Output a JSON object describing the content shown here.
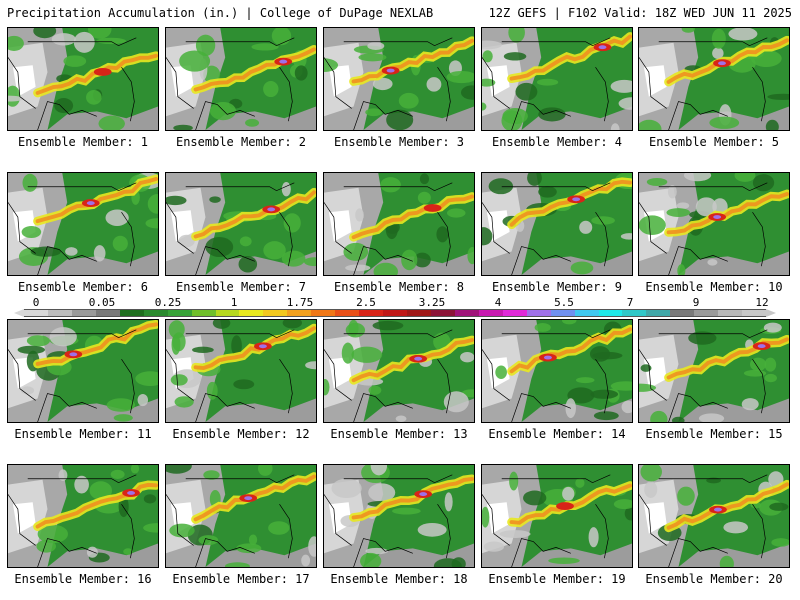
{
  "header": {
    "left_title": "Precipitation Accumulation (in.) | College of DuPage NEXLAB",
    "right_title": "12Z GEFS | F102 Valid: 18Z WED JUN 11 2025"
  },
  "panels": [
    {
      "label": "Ensemble Member: 1"
    },
    {
      "label": "Ensemble Member: 2"
    },
    {
      "label": "Ensemble Member: 3"
    },
    {
      "label": "Ensemble Member: 4"
    },
    {
      "label": "Ensemble Member: 5"
    },
    {
      "label": "Ensemble Member: 6"
    },
    {
      "label": "Ensemble Member: 7"
    },
    {
      "label": "Ensemble Member: 8"
    },
    {
      "label": "Ensemble Member: 9"
    },
    {
      "label": "Ensemble Member: 10"
    },
    {
      "label": "Ensemble Member: 11"
    },
    {
      "label": "Ensemble Member: 12"
    },
    {
      "label": "Ensemble Member: 13"
    },
    {
      "label": "Ensemble Member: 14"
    },
    {
      "label": "Ensemble Member: 15"
    },
    {
      "label": "Ensemble Member: 16"
    },
    {
      "label": "Ensemble Member: 17"
    },
    {
      "label": "Ensemble Member: 18"
    },
    {
      "label": "Ensemble Member: 19"
    },
    {
      "label": "Ensemble Member: 20"
    }
  ],
  "colorbar": {
    "labels": [
      "0",
      "0.05",
      "0.25",
      "1",
      "1.75",
      "2.5",
      "3.25",
      "4",
      "5.5",
      "7",
      "9",
      "12"
    ],
    "colors": [
      "#d8d8d8",
      "#bdbdbd",
      "#9a9a9a",
      "#7a7a7a",
      "#1e6e1e",
      "#2a8a2e",
      "#37a237",
      "#6fbf2a",
      "#b6d81e",
      "#e8e81e",
      "#f2c81e",
      "#f2a01e",
      "#f07818",
      "#e85018",
      "#d82418",
      "#c01818",
      "#a01818",
      "#8c1438",
      "#a0147a",
      "#c81ab0",
      "#e02ad8",
      "#a070e8",
      "#7090f0",
      "#40c8f0",
      "#20e8e8",
      "#30c8c8",
      "#40a8a8",
      "#7a7a7a",
      "#9a9a9a",
      "#b8b8b8",
      "#c8c8c8"
    ]
  }
}
